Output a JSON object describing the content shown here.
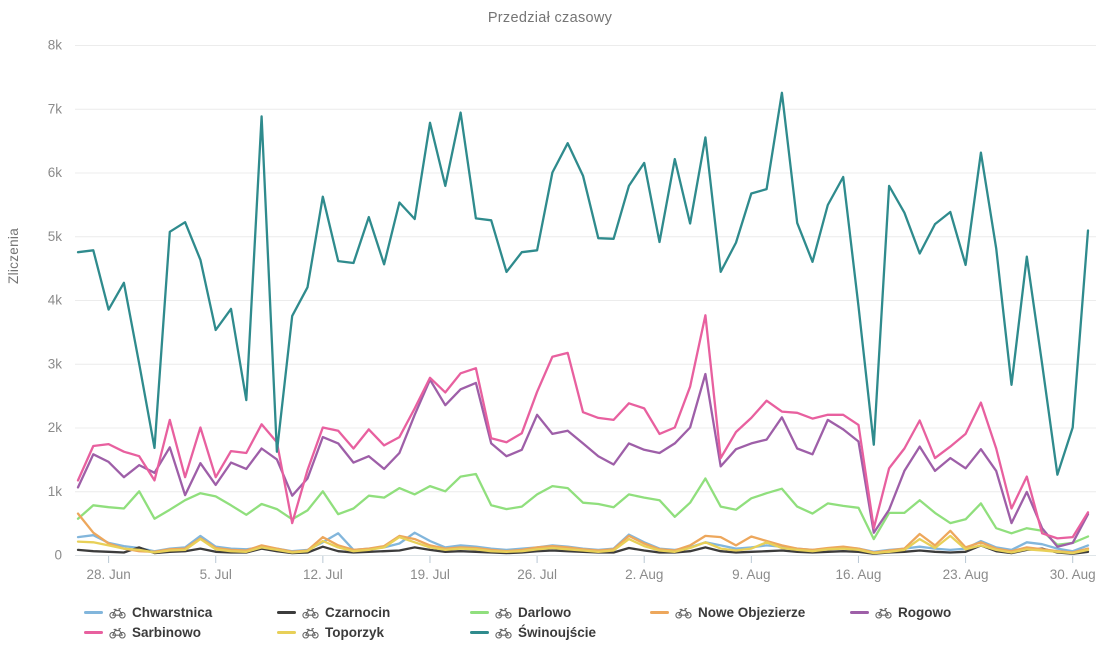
{
  "chart_data": {
    "type": "line",
    "title": "Przedział czasowy",
    "ylabel": "Zliczenia",
    "xlabel": "",
    "ylim": [
      0,
      8000
    ],
    "grid": true,
    "legend_position": "bottom",
    "x_unit": "day",
    "x_start_date": "26. Jun",
    "x_tick_labels": [
      "28. Jun",
      "5. Jul",
      "12. Jul",
      "19. Jul",
      "26. Jul",
      "2. Aug",
      "9. Aug",
      "16. Aug",
      "23. Aug",
      "30. Aug"
    ],
    "x_tick_indices": [
      2,
      9,
      16,
      23,
      30,
      37,
      44,
      51,
      58,
      65
    ],
    "y_tick_labels": [
      "0",
      "1k",
      "2k",
      "3k",
      "4k",
      "5k",
      "6k",
      "7k",
      "8k"
    ],
    "y_tick_values": [
      0,
      1000,
      2000,
      3000,
      4000,
      5000,
      6000,
      7000,
      8000
    ],
    "colors": {
      "grid": "#ececec",
      "axis_line": "#dfe5e8",
      "tick_mark": "#b9c8d4",
      "tick_label": "#8b8b8b",
      "title_text": "#757575",
      "legend_text": "#3b3b3b",
      "bike_icon": "#6a6a6a",
      "background": "#ffffff"
    },
    "series": [
      {
        "name": "Chwarstnica",
        "color": "#82b6dc",
        "icon": "bicycle-icon",
        "values": [
          280,
          310,
          190,
          140,
          110,
          60,
          100,
          120,
          300,
          130,
          100,
          90,
          120,
          100,
          60,
          80,
          200,
          340,
          80,
          100,
          120,
          180,
          350,
          220,
          120,
          150,
          130,
          100,
          80,
          100,
          120,
          150,
          130,
          100,
          80,
          100,
          320,
          200,
          100,
          80,
          120,
          200,
          150,
          100,
          120,
          150,
          130,
          100,
          80,
          100,
          120,
          100,
          50,
          80,
          100,
          130,
          100,
          80,
          100,
          220,
          120,
          80,
          200,
          170,
          100,
          60,
          150
        ]
      },
      {
        "name": "Czarnocin",
        "color": "#3c3c3c",
        "icon": "bicycle-icon",
        "values": [
          80,
          60,
          50,
          40,
          120,
          30,
          50,
          60,
          100,
          50,
          40,
          40,
          100,
          60,
          30,
          40,
          130,
          60,
          40,
          50,
          60,
          70,
          120,
          80,
          50,
          60,
          50,
          40,
          30,
          40,
          60,
          70,
          60,
          50,
          40,
          40,
          110,
          70,
          40,
          40,
          60,
          120,
          60,
          40,
          50,
          60,
          70,
          50,
          40,
          50,
          60,
          50,
          20,
          40,
          50,
          70,
          50,
          40,
          50,
          150,
          60,
          30,
          80,
          100,
          40,
          20,
          50
        ]
      },
      {
        "name": "Darlowo",
        "color": "#90df7d",
        "icon": "bicycle-icon",
        "values": [
          570,
          780,
          750,
          730,
          1000,
          570,
          710,
          860,
          970,
          920,
          780,
          630,
          800,
          720,
          560,
          700,
          1000,
          640,
          730,
          930,
          900,
          1050,
          950,
          1080,
          1000,
          1230,
          1270,
          780,
          720,
          760,
          950,
          1080,
          1050,
          820,
          800,
          750,
          950,
          900,
          860,
          600,
          820,
          1200,
          760,
          710,
          890,
          970,
          1040,
          760,
          650,
          810,
          770,
          740,
          250,
          660,
          660,
          860,
          660,
          500,
          560,
          810,
          420,
          340,
          420,
          380,
          160,
          190,
          290
        ]
      },
      {
        "name": "Nowe Objezierze",
        "color": "#eda75c",
        "icon": "bicycle-icon",
        "values": [
          650,
          350,
          180,
          100,
          60,
          50,
          90,
          100,
          260,
          110,
          80,
          70,
          150,
          100,
          50,
          70,
          280,
          150,
          80,
          100,
          140,
          300,
          250,
          150,
          100,
          120,
          110,
          80,
          60,
          80,
          120,
          140,
          120,
          90,
          70,
          90,
          300,
          180,
          90,
          70,
          150,
          300,
          280,
          150,
          290,
          220,
          150,
          100,
          80,
          110,
          130,
          100,
          40,
          70,
          100,
          330,
          150,
          380,
          120,
          200,
          100,
          60,
          120,
          90,
          60,
          40,
          100
        ]
      },
      {
        "name": "Rogowo",
        "color": "#9e5fa8",
        "icon": "bicycle-icon",
        "values": [
          1060,
          1580,
          1460,
          1220,
          1410,
          1290,
          1690,
          940,
          1440,
          1100,
          1450,
          1350,
          1670,
          1500,
          930,
          1200,
          1850,
          1750,
          1450,
          1550,
          1350,
          1600,
          2200,
          2750,
          2350,
          2600,
          2700,
          1750,
          1550,
          1650,
          2200,
          1900,
          1950,
          1750,
          1550,
          1420,
          1750,
          1650,
          1600,
          1750,
          2000,
          2840,
          1390,
          1660,
          1750,
          1810,
          2160,
          1670,
          1580,
          2120,
          1970,
          1780,
          350,
          710,
          1320,
          1700,
          1320,
          1520,
          1360,
          1660,
          1320,
          500,
          990,
          420,
          130,
          190,
          640
        ]
      },
      {
        "name": "Sarbinowo",
        "color": "#e8609f",
        "icon": "bicycle-icon",
        "values": [
          1170,
          1710,
          1740,
          1620,
          1550,
          1170,
          2120,
          1220,
          2000,
          1220,
          1630,
          1600,
          2050,
          1770,
          500,
          1330,
          2000,
          1950,
          1670,
          1970,
          1720,
          1850,
          2300,
          2780,
          2550,
          2850,
          2930,
          1830,
          1770,
          1910,
          2560,
          3110,
          3170,
          2240,
          2150,
          2120,
          2380,
          2300,
          1900,
          2000,
          2640,
          3760,
          1520,
          1930,
          2150,
          2420,
          2250,
          2230,
          2140,
          2200,
          2200,
          2040,
          420,
          1360,
          1670,
          2110,
          1520,
          1700,
          1900,
          2390,
          1670,
          730,
          1230,
          340,
          260,
          280,
          670
        ]
      },
      {
        "name": "Toporzyk",
        "color": "#e8d058",
        "icon": "bicycle-icon",
        "values": [
          210,
          200,
          150,
          100,
          80,
          40,
          70,
          80,
          250,
          90,
          60,
          50,
          120,
          80,
          40,
          60,
          220,
          120,
          60,
          80,
          120,
          280,
          200,
          120,
          80,
          100,
          90,
          60,
          50,
          60,
          90,
          110,
          90,
          70,
          50,
          70,
          250,
          140,
          70,
          50,
          110,
          200,
          100,
          70,
          100,
          200,
          110,
          80,
          60,
          90,
          100,
          80,
          30,
          50,
          80,
          250,
          110,
          300,
          90,
          150,
          80,
          40,
          90,
          70,
          50,
          30,
          80
        ]
      },
      {
        "name": "Świnoujście",
        "color": "#2f8b8d",
        "icon": "bicycle-icon",
        "values": [
          4750,
          4780,
          3850,
          4270,
          3000,
          1680,
          5070,
          5220,
          4630,
          3530,
          3860,
          2430,
          6880,
          1620,
          3750,
          4200,
          5620,
          4610,
          4580,
          5300,
          4560,
          5530,
          5270,
          6780,
          5790,
          6940,
          5280,
          5250,
          4440,
          4750,
          4780,
          6000,
          6460,
          5950,
          4970,
          4960,
          5790,
          6150,
          4910,
          6210,
          5200,
          6550,
          4440,
          4900,
          5670,
          5740,
          7250,
          5210,
          4600,
          5490,
          5930,
          3900,
          1730,
          5790,
          5370,
          4730,
          5190,
          5380,
          4550,
          6310,
          4810,
          2670,
          4680,
          3000,
          1260,
          2000,
          5090
        ]
      }
    ]
  }
}
